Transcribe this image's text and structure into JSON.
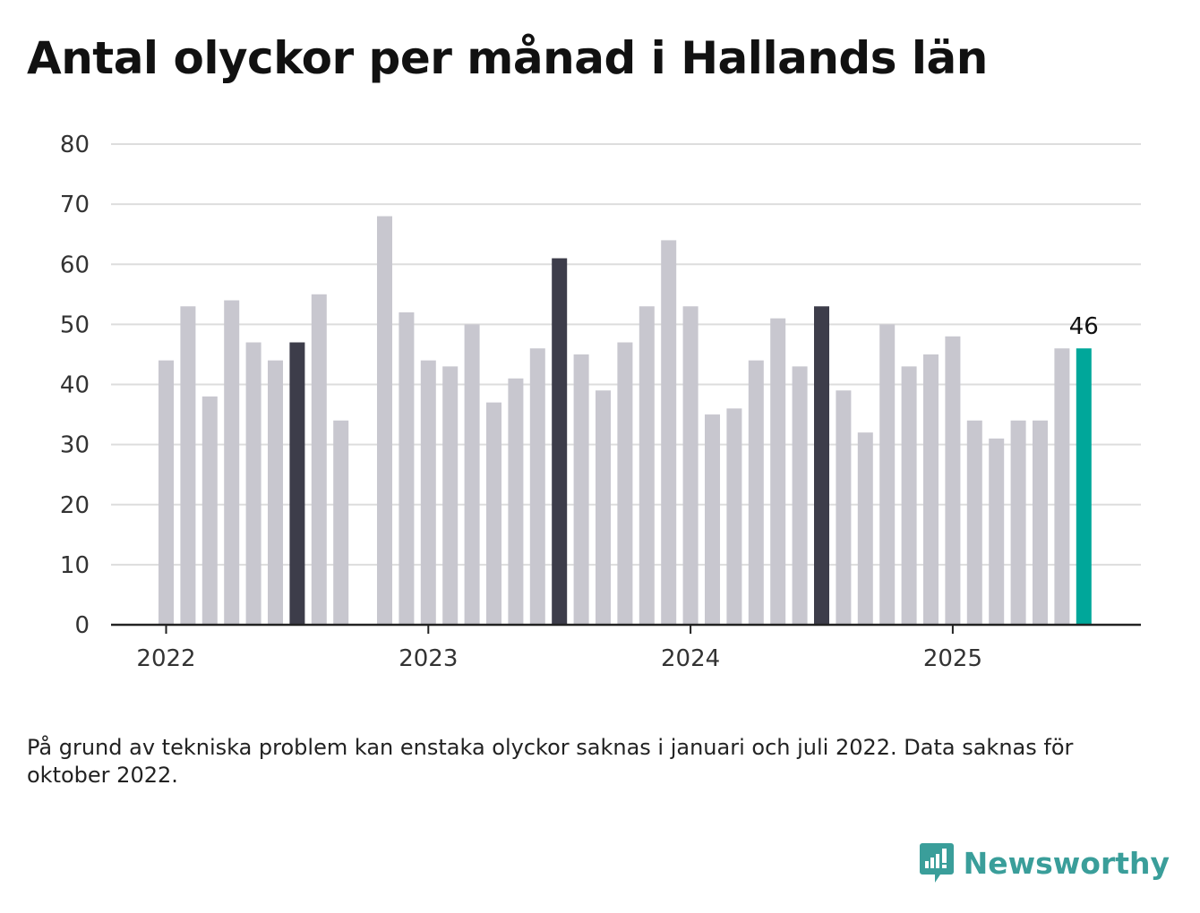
{
  "title": "Antal olyckor per månad i Hallands län",
  "note": "På grund av tekniska problem kan enstaka olyckor saknas i januari och juli 2022. Data saknas för oktober 2022.",
  "brand": {
    "name": "Newsworthy",
    "icon": "newsworthy-logo-icon",
    "color": "#3a9e9a"
  },
  "colors": {
    "bar": "#c8c7cf",
    "july": "#3d3d4a",
    "latest": "#00a79a",
    "grid": "#dddddd",
    "axis": "#222222"
  },
  "chart_data": {
    "type": "bar",
    "title": "Antal olyckor per månad i Hallands län",
    "xlabel": "",
    "ylabel": "",
    "ylim": [
      0,
      80
    ],
    "yticks": [
      0,
      10,
      20,
      30,
      40,
      50,
      60,
      70,
      80
    ],
    "xticks": [
      "2022",
      "2023",
      "2024",
      "2025"
    ],
    "grid": true,
    "x": [
      "2022-01",
      "2022-02",
      "2022-03",
      "2022-04",
      "2022-05",
      "2022-06",
      "2022-07",
      "2022-08",
      "2022-09",
      "2022-10",
      "2022-11",
      "2022-12",
      "2023-01",
      "2023-02",
      "2023-03",
      "2023-04",
      "2023-05",
      "2023-06",
      "2023-07",
      "2023-08",
      "2023-09",
      "2023-10",
      "2023-11",
      "2023-12",
      "2024-01",
      "2024-02",
      "2024-03",
      "2024-04",
      "2024-05",
      "2024-06",
      "2024-07",
      "2024-08",
      "2024-09",
      "2024-10",
      "2024-11",
      "2024-12",
      "2025-01",
      "2025-02",
      "2025-03",
      "2025-04",
      "2025-05",
      "2025-06",
      "2025-07"
    ],
    "values": [
      44,
      53,
      38,
      54,
      47,
      44,
      47,
      55,
      34,
      null,
      68,
      52,
      44,
      43,
      50,
      37,
      41,
      46,
      61,
      45,
      39,
      47,
      53,
      64,
      53,
      35,
      36,
      44,
      51,
      43,
      53,
      39,
      32,
      50,
      43,
      45,
      48,
      34,
      31,
      34,
      34,
      46,
      46
    ],
    "highlight_july": [
      "2022-07",
      "2023-07",
      "2024-07"
    ],
    "highlight_latest": "2025-07",
    "data_labels": [
      {
        "x": "2025-07",
        "text": "46"
      }
    ]
  }
}
